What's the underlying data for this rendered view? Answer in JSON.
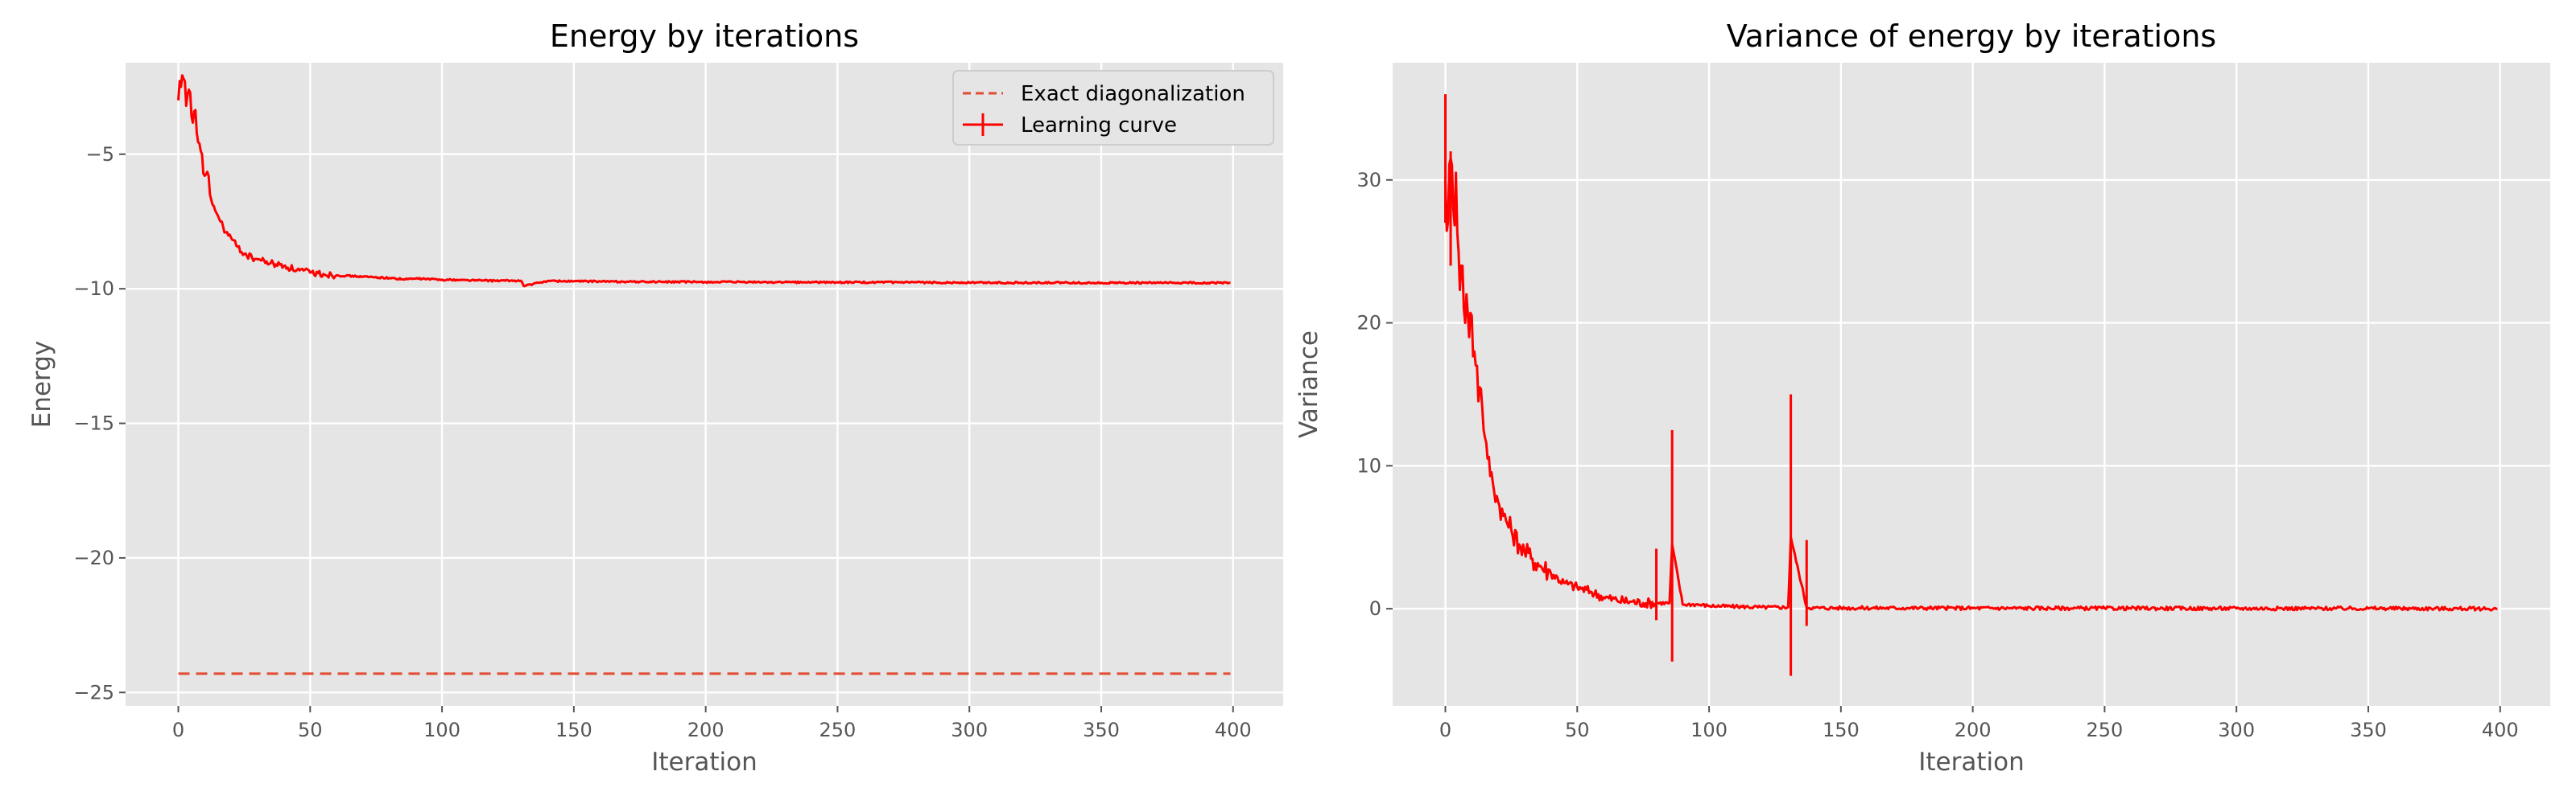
{
  "chart_data": [
    {
      "type": "line",
      "title": "Energy by iterations",
      "xlabel": "Iteration",
      "ylabel": "Energy",
      "xlim": [
        -20,
        419
      ],
      "ylim": [
        -25.5,
        -1.6
      ],
      "xticks": [
        0,
        50,
        100,
        150,
        200,
        250,
        300,
        350,
        400
      ],
      "yticks": [
        -5,
        -10,
        -15,
        -20,
        -25
      ],
      "grid": true,
      "legend": "top-right",
      "series": [
        {
          "name": "Exact diagonalization",
          "style": "dashed",
          "color": "#e24a33",
          "x": [
            0,
            399
          ],
          "y": [
            -24.3,
            -24.3
          ]
        },
        {
          "name": "Learning curve",
          "style": "solid-errorbar",
          "color": "#ff0000",
          "x": [
            0,
            1,
            2,
            3,
            4,
            5,
            6,
            7,
            8,
            9,
            10,
            12,
            14,
            16,
            18,
            20,
            22,
            25,
            28,
            30,
            35,
            40,
            45,
            50,
            55,
            60,
            70,
            80,
            86,
            90,
            100,
            110,
            120,
            130,
            131,
            140,
            150,
            175,
            200,
            250,
            300,
            350,
            399
          ],
          "y": [
            -3.0,
            -2.5,
            -2.2,
            -3.2,
            -2.6,
            -3.6,
            -3.4,
            -4.2,
            -4.6,
            -5.0,
            -5.8,
            -6.5,
            -7.1,
            -7.5,
            -7.9,
            -8.1,
            -8.4,
            -8.7,
            -8.85,
            -8.9,
            -9.05,
            -9.15,
            -9.3,
            -9.4,
            -9.45,
            -9.5,
            -9.55,
            -9.6,
            -9.65,
            -9.62,
            -9.66,
            -9.68,
            -9.7,
            -9.7,
            -9.9,
            -9.71,
            -9.72,
            -9.74,
            -9.75,
            -9.76,
            -9.77,
            -9.78,
            -9.78
          ]
        }
      ]
    },
    {
      "type": "line",
      "title": "Variance of energy by iterations",
      "xlabel": "Iteration",
      "ylabel": "Variance",
      "xlim": [
        -20,
        419
      ],
      "ylim": [
        -6.8,
        38.2
      ],
      "xticks": [
        0,
        50,
        100,
        150,
        200,
        250,
        300,
        350,
        400
      ],
      "yticks": [
        0,
        10,
        20,
        30
      ],
      "grid": true,
      "series": [
        {
          "name": "",
          "style": "solid-errorbar",
          "color": "#ff0000",
          "x": [
            0,
            1,
            2,
            3,
            4,
            5,
            6,
            7,
            8,
            9,
            10,
            11,
            12,
            13,
            14,
            15,
            16,
            18,
            20,
            22,
            25,
            28,
            30,
            33,
            36,
            40,
            45,
            50,
            55,
            60,
            65,
            70,
            75,
            80,
            85,
            86,
            90,
            95,
            100,
            110,
            120,
            130,
            131,
            137,
            140,
            150,
            175,
            200,
            250,
            300,
            350,
            399
          ],
          "y": [
            30.0,
            27.0,
            31.5,
            28.0,
            30.5,
            25.0,
            24.0,
            21.0,
            22.0,
            19.0,
            20.5,
            18.0,
            17.0,
            15.5,
            14.0,
            12.0,
            10.5,
            8.8,
            7.5,
            6.5,
            5.5,
            4.5,
            4.0,
            3.5,
            3.0,
            2.5,
            1.8,
            1.5,
            1.2,
            0.8,
            0.6,
            0.5,
            0.4,
            0.4,
            0.4,
            4.5,
            0.3,
            0.3,
            0.2,
            0.15,
            0.1,
            0.1,
            5.0,
            0.1,
            0.05,
            0.05,
            0.05,
            0.04,
            0.03,
            0.02,
            0.02,
            0.0
          ],
          "errorbars": [
            {
              "x": 0,
              "low": 27.0,
              "high": 36.0
            },
            {
              "x": 2,
              "low": 24.0,
              "high": 32.0
            },
            {
              "x": 80,
              "low": -0.8,
              "high": 4.2
            },
            {
              "x": 86,
              "low": -3.7,
              "high": 12.5
            },
            {
              "x": 131,
              "low": -4.7,
              "high": 15.0
            },
            {
              "x": 137,
              "low": -1.2,
              "high": 4.8
            }
          ]
        }
      ]
    }
  ]
}
